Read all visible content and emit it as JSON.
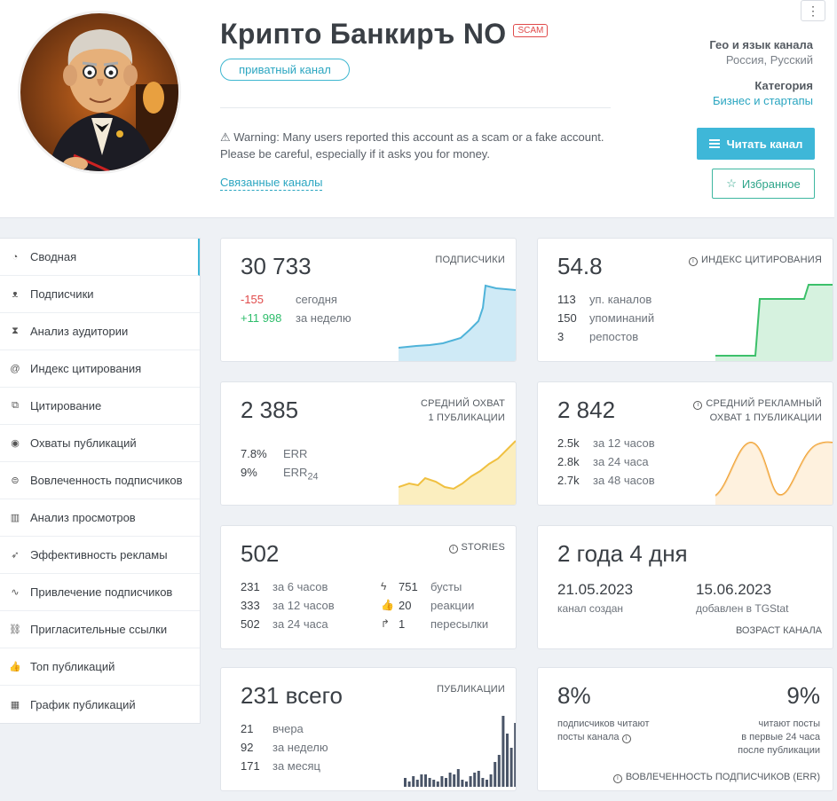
{
  "header": {
    "title": "Крипто Банкиръ NO",
    "scam_badge": "SCAM",
    "private_pill": "приватный канал",
    "warning": "⚠ Warning: Many users reported this account as a scam or a fake account. Please be careful, especially if it asks you for money.",
    "related_link": "Связанные каналы",
    "menu": "⋮",
    "geo_label": "Гео и язык канала",
    "geo_value": "Россия, Русский",
    "category_label": "Категория",
    "category_value": "Бизнес и стартапы",
    "read_button": "Читать канал",
    "favorite_button": "Избранное"
  },
  "sidebar": {
    "items": [
      {
        "label": "Сводная",
        "icon": "gauge-icon",
        "glyph": "◔"
      },
      {
        "label": "Подписчики",
        "icon": "users-icon",
        "glyph": "ᴥ"
      },
      {
        "label": "Анализ аудитории",
        "icon": "hourglass-icon",
        "glyph": "⧗"
      },
      {
        "label": "Индекс цитирования",
        "icon": "at-icon",
        "glyph": "@"
      },
      {
        "label": "Цитирование",
        "icon": "quote-icon",
        "glyph": "⧉"
      },
      {
        "label": "Охваты публикаций",
        "icon": "eye-icon",
        "glyph": "◉"
      },
      {
        "label": "Вовлеченность подписчиков",
        "icon": "engagement-icon",
        "glyph": "⊜"
      },
      {
        "label": "Анализ просмотров",
        "icon": "bar-chart-icon",
        "glyph": "▥"
      },
      {
        "label": "Эффективность рекламы",
        "icon": "rocket-icon",
        "glyph": "➶"
      },
      {
        "label": "Привлечение подписчиков",
        "icon": "trend-icon",
        "glyph": "∿"
      },
      {
        "label": "Пригласительные ссылки",
        "icon": "link-icon",
        "glyph": "⛓"
      },
      {
        "label": "Топ публикаций",
        "icon": "thumbs-up-icon",
        "glyph": "👍"
      },
      {
        "label": "График публикаций",
        "icon": "calendar-icon",
        "glyph": "▦"
      }
    ]
  },
  "cards": {
    "subscribers": {
      "value": "30 733",
      "caption": "ПОДПИСЧИКИ",
      "today_n": "-155",
      "today_t": "сегодня",
      "week_n": "+11 998",
      "week_t": "за неделю"
    },
    "citation": {
      "value": "54.8",
      "caption": "ИНДЕКС ЦИТИРОВАНИЯ",
      "rows": [
        {
          "n": "113",
          "t": "уп. каналов"
        },
        {
          "n": "150",
          "t": "упоминаний"
        },
        {
          "n": "3",
          "t": "репостов"
        }
      ]
    },
    "reach": {
      "value": "2 385",
      "caption1": "СРЕДНИЙ ОХВАТ",
      "caption2": "1 ПУБЛИКАЦИИ",
      "err_n": "7.8%",
      "err_t": "ERR",
      "err24_n": "9%",
      "err24_t": "ERR",
      "err24_sub": "24"
    },
    "ad_reach": {
      "value": "2 842",
      "caption1": "СРЕДНИЙ РЕКЛАМНЫЙ",
      "caption2": "ОХВАТ 1 ПУБЛИКАЦИИ",
      "rows": [
        {
          "n": "2.5k",
          "t": "за 12 часов"
        },
        {
          "n": "2.8k",
          "t": "за 24 часа"
        },
        {
          "n": "2.7k",
          "t": "за 48 часов"
        }
      ]
    },
    "stories": {
      "value": "502",
      "caption": "STORIES",
      "left": [
        {
          "n": "231",
          "t": "за 6 часов"
        },
        {
          "n": "333",
          "t": "за 12 часов"
        },
        {
          "n": "502",
          "t": "за 24 часа"
        }
      ],
      "right": [
        {
          "icon": "bolt-icon",
          "glyph": "ϟ",
          "n": "751",
          "t": "бусты"
        },
        {
          "icon": "thumbs-up-icon",
          "glyph": "👍",
          "n": "20",
          "t": "реакции"
        },
        {
          "icon": "share-icon",
          "glyph": "↱",
          "n": "1",
          "t": "пересылки"
        }
      ]
    },
    "age": {
      "value": "2 года 4 дня",
      "created_date": "21.05.2023",
      "created_label": "канал создан",
      "added_date": "15.06.2023",
      "added_label": "добавлен в TGStat",
      "caption": "ВОЗРАСТ КАНАЛА"
    },
    "posts": {
      "value": "231 всего",
      "caption": "ПУБЛИКАЦИИ",
      "rows": [
        {
          "n": "21",
          "t": "вчера"
        },
        {
          "n": "92",
          "t": "за неделю"
        },
        {
          "n": "171",
          "t": "за месяц"
        }
      ]
    },
    "err": {
      "left_value": "8%",
      "left_label1": "подписчиков читают",
      "left_label2": "посты канала",
      "right_value": "9%",
      "right_label1": "читают посты",
      "right_label2": "в первые 24 часа",
      "right_label3": "после публикации",
      "caption": "ВОВЛЕЧЕННОСТЬ ПОДПИСЧИКОВ (ERR)"
    }
  },
  "colors": {
    "accent": "#3eb7d8",
    "subscribers_line": "#4fb3d9",
    "citation_line": "#3cc06a",
    "reach_line": "#f0c040",
    "ad_reach_line": "#f0a030",
    "posts_bars": "#4a5568",
    "negative": "#e04a4a",
    "positive": "#2ebd6b"
  }
}
